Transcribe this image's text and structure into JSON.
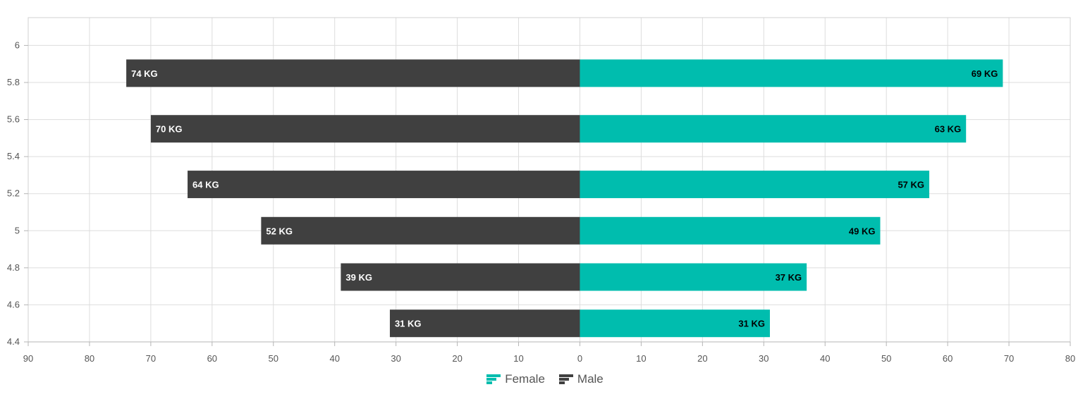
{
  "chart_data": {
    "type": "bar",
    "orientation": "horizontal",
    "title": "",
    "xlabel": "",
    "ylabel": "",
    "categories": [
      "4.6",
      "4.8",
      "5",
      "5.4",
      "5.6",
      "6"
    ],
    "category_values": [
      4.5,
      4.75,
      5.0,
      5.25,
      5.55,
      5.85
    ],
    "series": [
      {
        "name": "Male",
        "color": "#404040",
        "direction": "left",
        "values": [
          31,
          39,
          52,
          64,
          70,
          74
        ],
        "labels": [
          "31 KG",
          "39 KG",
          "52 KG",
          "64 KG",
          "70 KG",
          "74 KG"
        ]
      },
      {
        "name": "Female",
        "color": "#00bdae",
        "direction": "right",
        "values": [
          31,
          37,
          49,
          57,
          63,
          69
        ],
        "labels": [
          "31 KG",
          "37 KG",
          "49 KG",
          "57 KG",
          "63 KG",
          "69 KG"
        ]
      }
    ],
    "xlim": [
      -90,
      80
    ],
    "ylim": [
      4.4,
      6.15
    ],
    "x_ticks": [
      "90",
      "80",
      "70",
      "60",
      "50",
      "40",
      "30",
      "20",
      "10",
      "0",
      "10",
      "20",
      "30",
      "40",
      "50",
      "60",
      "70",
      "80"
    ],
    "y_ticks": [
      "4.4",
      "4.6",
      "4.8",
      "5",
      "5.2",
      "5.4",
      "5.6",
      "5.8",
      "6"
    ],
    "grid": true,
    "legend": {
      "position": "bottom",
      "items": [
        "Female",
        "Male"
      ]
    }
  }
}
